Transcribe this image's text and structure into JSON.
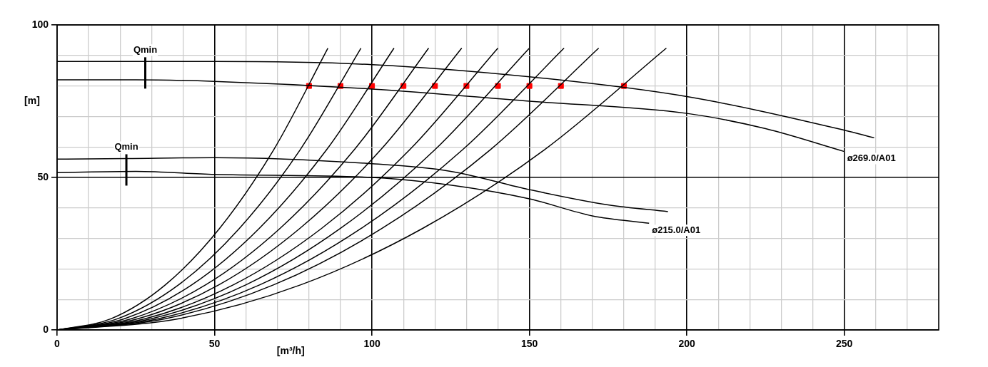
{
  "chart_data": {
    "type": "line",
    "xlabel": "[m³/h]",
    "ylabel": "[m]",
    "xlim": [
      0,
      280
    ],
    "ylim": [
      0,
      100
    ],
    "xticks": [
      0,
      {
        "value": 10,
        "label": null
      },
      {
        "value": 20,
        "label": null
      },
      {
        "value": 30,
        "label": null
      },
      {
        "value": 40,
        "label": null
      },
      50,
      {
        "value": 60,
        "label": null
      },
      {
        "value": 70,
        "label": null
      },
      {
        "value": 80,
        "label": null
      },
      {
        "value": 90,
        "label": null
      },
      100,
      {
        "value": 110,
        "label": null
      },
      {
        "value": 120,
        "label": null
      },
      {
        "value": 130,
        "label": null
      },
      {
        "value": 140,
        "label": null
      },
      150,
      {
        "value": 160,
        "label": null
      },
      {
        "value": 170,
        "label": null
      },
      {
        "value": 180,
        "label": null
      },
      {
        "value": 190,
        "label": null
      },
      200,
      {
        "value": 210,
        "label": null
      },
      {
        "value": 220,
        "label": null
      },
      {
        "value": 230,
        "label": null
      },
      {
        "value": 240,
        "label": null
      },
      250,
      {
        "value": 260,
        "label": null
      },
      {
        "value": 270,
        "label": null
      },
      {
        "value": 280,
        "label": null
      }
    ],
    "yticks": [
      0,
      {
        "value": 10,
        "label": null
      },
      {
        "value": 20,
        "label": null
      },
      {
        "value": 30,
        "label": null
      },
      {
        "value": 40,
        "label": null
      },
      50,
      {
        "value": 60,
        "label": null
      },
      {
        "value": 70,
        "label": null
      },
      {
        "value": 80,
        "label": null
      },
      {
        "value": 90,
        "label": null
      },
      100
    ],
    "grid": true,
    "legend": false,
    "series": [
      {
        "color": "#000000",
        "x": [
          0,
          50,
          100,
          150,
          200,
          250,
          259.5
        ],
        "values": [
          88,
          88,
          87,
          83,
          76.5,
          65.5,
          63
        ]
      },
      {
        "color": "#000000",
        "x": [
          0,
          25,
          50,
          100,
          150,
          200,
          225,
          250
        ],
        "values": [
          82,
          82,
          81.5,
          79,
          75,
          71,
          66,
          58.5
        ]
      },
      {
        "color": "#000000",
        "x": [
          0,
          22,
          50,
          100,
          125,
          150,
          175,
          194
        ],
        "values": [
          56,
          56.2,
          56.5,
          54.5,
          52,
          46,
          41,
          38.8
        ]
      },
      {
        "color": "#000000",
        "x": [
          0,
          25,
          50,
          100,
          125,
          150,
          170,
          188
        ],
        "values": [
          51.6,
          52,
          51,
          50,
          47.5,
          43,
          37.4,
          35
        ]
      },
      {
        "color": "#000000",
        "x": [
          0,
          17.2,
          34.4,
          51.6,
          68.8,
          86
        ],
        "values": [
          0,
          3.7,
          14.8,
          33.3,
          59.1,
          92.4
        ]
      },
      {
        "color": "#000000",
        "x": [
          0,
          19.3,
          38.6,
          57.9,
          77.2,
          96.5
        ],
        "values": [
          0,
          3.7,
          14.8,
          33.3,
          59.1,
          92.4
        ]
      },
      {
        "color": "#000000",
        "x": [
          0,
          21.4,
          42.8,
          64.2,
          85.6,
          107
        ],
        "values": [
          0,
          3.7,
          14.8,
          33.3,
          59.1,
          92.4
        ]
      },
      {
        "color": "#000000",
        "x": [
          0,
          23.6,
          47.2,
          70.8,
          94.4,
          118
        ],
        "values": [
          0,
          3.7,
          14.8,
          33.3,
          59.1,
          92.4
        ]
      },
      {
        "color": "#000000",
        "x": [
          0,
          25.7,
          51.4,
          77.1,
          102.8,
          128.5
        ],
        "values": [
          0,
          3.7,
          14.8,
          33.3,
          59.1,
          92.4
        ]
      },
      {
        "color": "#000000",
        "x": [
          0,
          28,
          56,
          84,
          112,
          140
        ],
        "values": [
          0,
          3.7,
          14.8,
          33.3,
          59.1,
          92.4
        ]
      },
      {
        "color": "#000000",
        "x": [
          0,
          30,
          60,
          90,
          120,
          150
        ],
        "values": [
          0,
          3.7,
          14.8,
          33.3,
          59.1,
          92.4
        ]
      },
      {
        "color": "#000000",
        "x": [
          0,
          32.2,
          64.4,
          96.6,
          128.8,
          161
        ],
        "values": [
          0,
          3.7,
          14.8,
          33.3,
          59.1,
          92.4
        ]
      },
      {
        "color": "#000000",
        "x": [
          0,
          34.4,
          68.8,
          103.2,
          137.6,
          172
        ],
        "values": [
          0,
          3.7,
          14.8,
          33.3,
          59.1,
          92.4
        ]
      },
      {
        "color": "#000000",
        "x": [
          0,
          38.7,
          77.4,
          116.1,
          154.8,
          193.5
        ],
        "values": [
          0,
          3.7,
          14.8,
          33.3,
          59.1,
          92.4
        ]
      },
      {
        "type": "scatter",
        "color": "#ff0000",
        "marker": "square",
        "x": [
          80,
          90,
          100,
          110,
          120,
          130,
          140,
          150,
          160,
          180
        ],
        "values": [
          80,
          80,
          80,
          80,
          80,
          80,
          80,
          80,
          80,
          80
        ]
      }
    ],
    "annotations": [
      {
        "text": "Qmin",
        "x": 28,
        "y": 88
      },
      {
        "text": "Qmin",
        "x": 22,
        "y": 56.2
      },
      {
        "text": "ø269.0/A01",
        "x": 250,
        "y": 58.5
      },
      {
        "text": "ø215.0/A01",
        "x": 188,
        "y": 35
      }
    ]
  }
}
